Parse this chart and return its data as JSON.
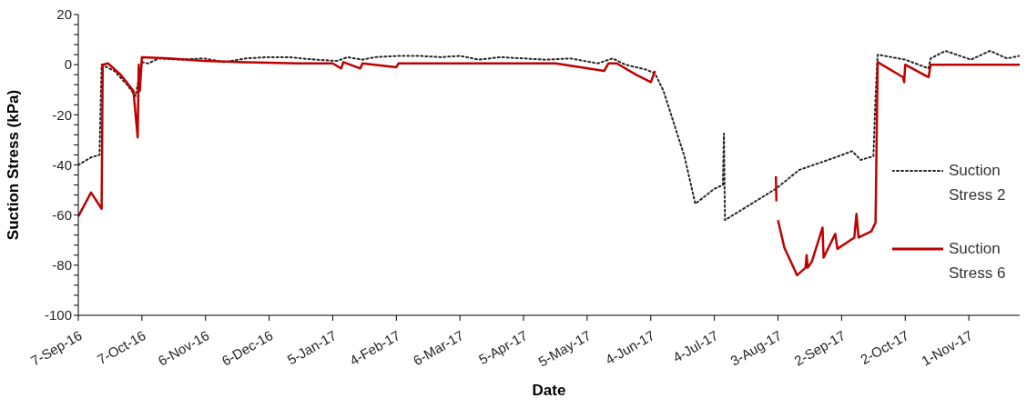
{
  "chart_data": {
    "type": "line",
    "xlabel": "Date",
    "ylabel": "Suction Stress (kPa)",
    "legend": "right",
    "xlim": [
      "2016-09-07",
      "2017-11-25"
    ],
    "xticks": [
      {
        "value": "2016-09-07",
        "label": "7-Sep-16"
      },
      {
        "value": "2016-10-07",
        "label": "7-Oct-16"
      },
      {
        "value": "2016-11-06",
        "label": "6-Nov-16"
      },
      {
        "value": "2016-12-06",
        "label": "6-Dec-16"
      },
      {
        "value": "2017-01-05",
        "label": "5-Jan-17"
      },
      {
        "value": "2017-02-04",
        "label": "4-Feb-17"
      },
      {
        "value": "2017-03-06",
        "label": "6-Mar-17"
      },
      {
        "value": "2017-04-05",
        "label": "5-Apr-17"
      },
      {
        "value": "2017-05-05",
        "label": "5-May-17"
      },
      {
        "value": "2017-06-04",
        "label": "4-Jun-17"
      },
      {
        "value": "2017-07-04",
        "label": "4-Jul-17"
      },
      {
        "value": "2017-08-03",
        "label": "3-Aug-17"
      },
      {
        "value": "2017-09-02",
        "label": "2-Sep-17"
      },
      {
        "value": "2017-10-02",
        "label": "2-Oct-17"
      },
      {
        "value": "2017-11-01",
        "label": "1-Nov-17"
      }
    ],
    "ylim": [
      -100,
      20
    ],
    "yticks": [
      -100,
      {
        "value": -96,
        "label": null
      },
      {
        "value": -92,
        "label": null
      },
      {
        "value": -88,
        "label": null
      },
      {
        "value": -84,
        "label": null
      },
      -80,
      {
        "value": -76,
        "label": null
      },
      {
        "value": -72,
        "label": null
      },
      {
        "value": -68,
        "label": null
      },
      {
        "value": -64,
        "label": null
      },
      -60,
      {
        "value": -56,
        "label": null
      },
      {
        "value": -52,
        "label": null
      },
      {
        "value": -48,
        "label": null
      },
      {
        "value": -44,
        "label": null
      },
      -40,
      {
        "value": -36,
        "label": null
      },
      {
        "value": -32,
        "label": null
      },
      {
        "value": -28,
        "label": null
      },
      {
        "value": -24,
        "label": null
      },
      -20,
      {
        "value": -16,
        "label": null
      },
      {
        "value": -12,
        "label": null
      },
      {
        "value": -8,
        "label": null
      },
      {
        "value": -4,
        "label": null
      },
      0,
      {
        "value": 4,
        "label": null
      },
      {
        "value": 8,
        "label": null
      },
      {
        "value": 12,
        "label": null
      },
      {
        "value": 16,
        "label": null
      },
      20
    ],
    "series": [
      {
        "name": "Suction Stress 2",
        "color": "#262626",
        "line_style": "dotted",
        "x": [
          "2016-09-07",
          "2016-09-13",
          "2016-09-17",
          "2016-09-18",
          "2016-09-24",
          "2016-09-30",
          "2016-10-04",
          "2016-10-07",
          "2016-10-10",
          "2016-10-15",
          "2016-10-25",
          "2016-11-05",
          "2016-11-15",
          "2016-11-25",
          "2016-12-05",
          "2016-12-15",
          "2016-12-28",
          "2017-01-07",
          "2017-01-12",
          "2017-01-19",
          "2017-01-25",
          "2017-02-05",
          "2017-02-15",
          "2017-02-25",
          "2017-03-06",
          "2017-03-15",
          "2017-03-25",
          "2017-04-05",
          "2017-04-15",
          "2017-04-27",
          "2017-05-10",
          "2017-05-17",
          "2017-05-23",
          "2017-06-02",
          "2017-06-06",
          "2017-06-10",
          "2017-06-14",
          "2017-06-20",
          "2017-06-25",
          "2017-07-04",
          "2017-07-08",
          "2017-07-08T12:00",
          "2017-07-09",
          "2017-08-02",
          "2017-08-13",
          "2017-08-30",
          "2017-09-07",
          "2017-09-11",
          "2017-09-17",
          "2017-09-18",
          "2017-09-19",
          "2017-10-02",
          "2017-10-13",
          "2017-10-14",
          "2017-10-21",
          "2017-11-02",
          "2017-11-11",
          "2017-11-19",
          "2017-11-25"
        ],
        "values": [
          -40,
          -37,
          -36,
          0,
          -2.5,
          -8,
          -12.5,
          1,
          0.5,
          2.5,
          2,
          2.5,
          1,
          2.5,
          3,
          3,
          2,
          1.5,
          3,
          2,
          3,
          3.5,
          3.5,
          3,
          3.5,
          2,
          3,
          2.5,
          2,
          2.5,
          0.5,
          2.5,
          0,
          -2,
          -3.5,
          -10.5,
          -21,
          -37,
          -55.5,
          -49.5,
          -48,
          -27.5,
          -62,
          -49.5,
          -42,
          -37,
          -34.5,
          -38,
          -36.5,
          -13,
          4,
          2,
          -1.5,
          2.5,
          5.5,
          2,
          5.5,
          2.5,
          3.5
        ]
      },
      {
        "name": "Suction Stress 6",
        "color": "#c00000",
        "line_style": "solid",
        "x": [
          "2016-09-07",
          "2016-09-13",
          "2016-09-18",
          "2016-09-18T12:00",
          "2016-09-21",
          "2016-09-27",
          "2016-10-03",
          "2016-10-05",
          "2016-10-05T12:00",
          "2016-10-06",
          "2016-10-07",
          "2016-10-20",
          "2016-11-05",
          "2016-11-25",
          "2016-12-20",
          "2017-01-05",
          "2017-01-09",
          "2017-01-10",
          "2017-01-18",
          "2017-01-19",
          "2017-02-04",
          "2017-02-05",
          "2017-03-15",
          "2017-04-20",
          "2017-05-13",
          "2017-05-15",
          "2017-05-19",
          "2017-05-28",
          "2017-06-04",
          "2017-06-06",
          "2017-06-07",
          "2017-08-02",
          "2017-08-02T06:00",
          "2017-08-02T12:00",
          "2017-08-03",
          "2017-08-06",
          "2017-08-12",
          "2017-08-16",
          "2017-08-16T12:00",
          "2017-08-17",
          "2017-08-19",
          "2017-08-24",
          "2017-08-24T12:00",
          "2017-08-30",
          "2017-08-31",
          "2017-09-08",
          "2017-09-09",
          "2017-09-10",
          "2017-09-16",
          "2017-09-18",
          "2017-09-19",
          "2017-10-01",
          "2017-10-01T12:00",
          "2017-10-02",
          "2017-10-13",
          "2017-10-14",
          "2017-10-18",
          "2017-11-25"
        ],
        "values": [
          -60.5,
          -51,
          -57.5,
          0,
          0.5,
          -4,
          -10.5,
          -29,
          0,
          -10.5,
          3,
          2.5,
          1.5,
          1,
          0.5,
          0.5,
          -1.5,
          1,
          -1.5,
          0.5,
          -1,
          0.5,
          0.5,
          0.5,
          -2.5,
          0.5,
          0.5,
          -4,
          -7,
          -2.5,
          null,
          -44.5,
          -54.5,
          null,
          -62,
          -73,
          -84,
          -81,
          -76,
          -81,
          -78.5,
          -65,
          -77,
          -67.5,
          -73.5,
          -69,
          -59.5,
          -69,
          -66.5,
          -63,
          1,
          -5,
          -7,
          0,
          -5,
          0,
          0,
          0
        ]
      }
    ]
  }
}
